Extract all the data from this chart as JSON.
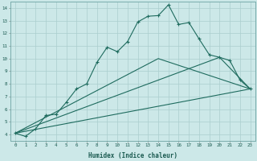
{
  "xlabel": "Humidex (Indice chaleur)",
  "ylabel": "",
  "background_color": "#cce8e8",
  "line_color": "#1e6b5e",
  "grid_color": "#aacece",
  "xlim": [
    -0.5,
    23.5
  ],
  "ylim": [
    3.5,
    14.5
  ],
  "xticks": [
    0,
    1,
    2,
    3,
    4,
    5,
    6,
    7,
    8,
    9,
    10,
    11,
    12,
    13,
    14,
    15,
    16,
    17,
    18,
    19,
    20,
    21,
    22,
    23
  ],
  "yticks": [
    4,
    5,
    6,
    7,
    8,
    9,
    10,
    11,
    12,
    13,
    14
  ],
  "line1_x": [
    0,
    1,
    2,
    3,
    4,
    5,
    6,
    7,
    8,
    9,
    10,
    11,
    12,
    13,
    14,
    15,
    16,
    17,
    18,
    19,
    20,
    21,
    22,
    23
  ],
  "line1_y": [
    4.1,
    3.85,
    4.45,
    5.5,
    5.6,
    6.55,
    7.6,
    8.0,
    9.7,
    10.9,
    10.55,
    11.35,
    12.9,
    13.35,
    13.4,
    14.25,
    12.7,
    12.85,
    11.55,
    10.3,
    10.1,
    9.85,
    8.3,
    7.6
  ],
  "line2_x": [
    0,
    14,
    23
  ],
  "line2_y": [
    4.1,
    10.0,
    7.6
  ],
  "line3_x": [
    0,
    20,
    23
  ],
  "line3_y": [
    4.1,
    10.1,
    7.6
  ],
  "line4_x": [
    0,
    23
  ],
  "line4_y": [
    4.1,
    7.6
  ]
}
